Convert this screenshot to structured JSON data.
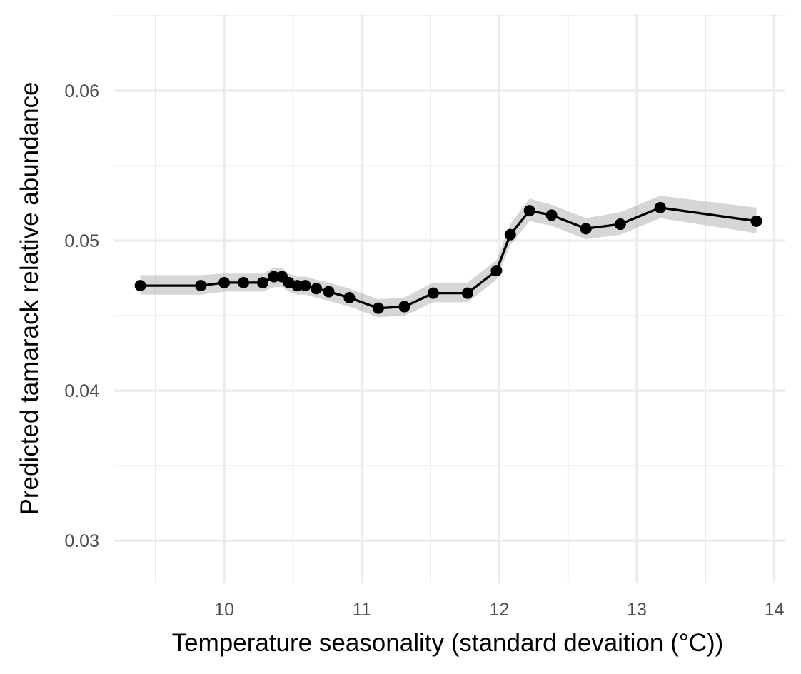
{
  "chart_data": {
    "type": "line",
    "title": "",
    "xlabel": "Temperature seasonality (standard devaition (°C))",
    "ylabel": "Predicted tamarack relative abundance",
    "xlim": [
      9.2,
      14.08
    ],
    "ylim": [
      0.0272,
      0.0651
    ],
    "x_ticks": [
      10,
      11,
      12,
      13,
      14
    ],
    "x_tick_labels": [
      "10",
      "11",
      "12",
      "13",
      "14"
    ],
    "y_ticks": [
      0.03,
      0.04,
      0.05,
      0.06
    ],
    "y_tick_labels": [
      "0.03",
      "0.04",
      "0.05",
      "0.06"
    ],
    "grid": true,
    "legend": "none",
    "colors": {
      "line": "#000000",
      "ribbon": "#999999",
      "grid": "#ebebeb",
      "tick_text": "#4d4d4d"
    },
    "series": [
      {
        "points": [
          {
            "x": 9.39,
            "y": 0.047,
            "lo": 0.0464,
            "hi": 0.0477
          },
          {
            "x": 9.83,
            "y": 0.047,
            "lo": 0.0464,
            "hi": 0.0477
          },
          {
            "x": 10.0,
            "y": 0.0472,
            "lo": 0.0466,
            "hi": 0.0478
          },
          {
            "x": 10.14,
            "y": 0.0472,
            "lo": 0.0466,
            "hi": 0.0478
          },
          {
            "x": 10.28,
            "y": 0.0472,
            "lo": 0.0466,
            "hi": 0.0478
          },
          {
            "x": 10.36,
            "y": 0.0476,
            "lo": 0.0469,
            "hi": 0.0482
          },
          {
            "x": 10.42,
            "y": 0.0476,
            "lo": 0.0469,
            "hi": 0.0482
          },
          {
            "x": 10.47,
            "y": 0.0472,
            "lo": 0.0466,
            "hi": 0.0478
          },
          {
            "x": 10.53,
            "y": 0.047,
            "lo": 0.0464,
            "hi": 0.0476
          },
          {
            "x": 10.59,
            "y": 0.047,
            "lo": 0.0464,
            "hi": 0.0476
          },
          {
            "x": 10.67,
            "y": 0.0468,
            "lo": 0.0462,
            "hi": 0.0474
          },
          {
            "x": 10.76,
            "y": 0.0466,
            "lo": 0.046,
            "hi": 0.0472
          },
          {
            "x": 10.91,
            "y": 0.0462,
            "lo": 0.0456,
            "hi": 0.0468
          },
          {
            "x": 11.12,
            "y": 0.0455,
            "lo": 0.0449,
            "hi": 0.0461
          },
          {
            "x": 11.31,
            "y": 0.0456,
            "lo": 0.045,
            "hi": 0.0462
          },
          {
            "x": 11.52,
            "y": 0.0465,
            "lo": 0.0459,
            "hi": 0.0472
          },
          {
            "x": 11.77,
            "y": 0.0465,
            "lo": 0.0459,
            "hi": 0.0472
          },
          {
            "x": 11.98,
            "y": 0.048,
            "lo": 0.0474,
            "hi": 0.0487
          },
          {
            "x": 12.08,
            "y": 0.0504,
            "lo": 0.0497,
            "hi": 0.0511
          },
          {
            "x": 12.22,
            "y": 0.052,
            "lo": 0.0513,
            "hi": 0.0528
          },
          {
            "x": 12.38,
            "y": 0.0517,
            "lo": 0.051,
            "hi": 0.0524
          },
          {
            "x": 12.63,
            "y": 0.0508,
            "lo": 0.0501,
            "hi": 0.0515
          },
          {
            "x": 12.88,
            "y": 0.0511,
            "lo": 0.0504,
            "hi": 0.0519
          },
          {
            "x": 13.17,
            "y": 0.0522,
            "lo": 0.0515,
            "hi": 0.053
          },
          {
            "x": 13.87,
            "y": 0.0513,
            "lo": 0.0505,
            "hi": 0.0522
          }
        ]
      }
    ]
  }
}
